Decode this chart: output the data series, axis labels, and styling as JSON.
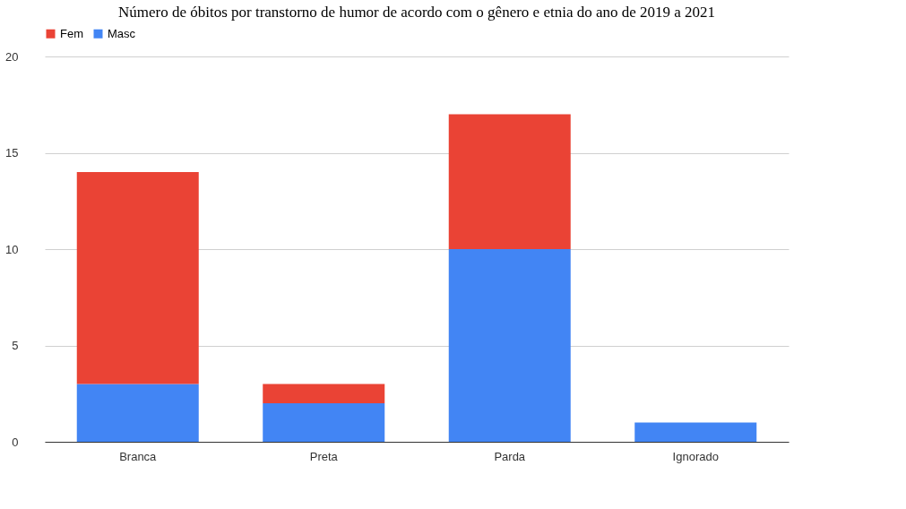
{
  "chart_data": {
    "type": "bar",
    "title": "Número de óbitos por transtorno de humor de acordo com o gênero e etnia do ano de 2019 a 2021",
    "categories": [
      "Branca",
      "Preta",
      "Parda",
      "Ignorado"
    ],
    "stacked": true,
    "series": [
      {
        "name": "Masc",
        "color": "#4285f4",
        "values": [
          3,
          2,
          10,
          1
        ]
      },
      {
        "name": "Fem",
        "color": "#ea4335",
        "values": [
          11,
          1,
          7,
          0
        ]
      }
    ],
    "ylim": [
      0,
      20
    ],
    "yticks": [
      0,
      5,
      10,
      15,
      20
    ],
    "grid": "y",
    "legend": "top"
  }
}
